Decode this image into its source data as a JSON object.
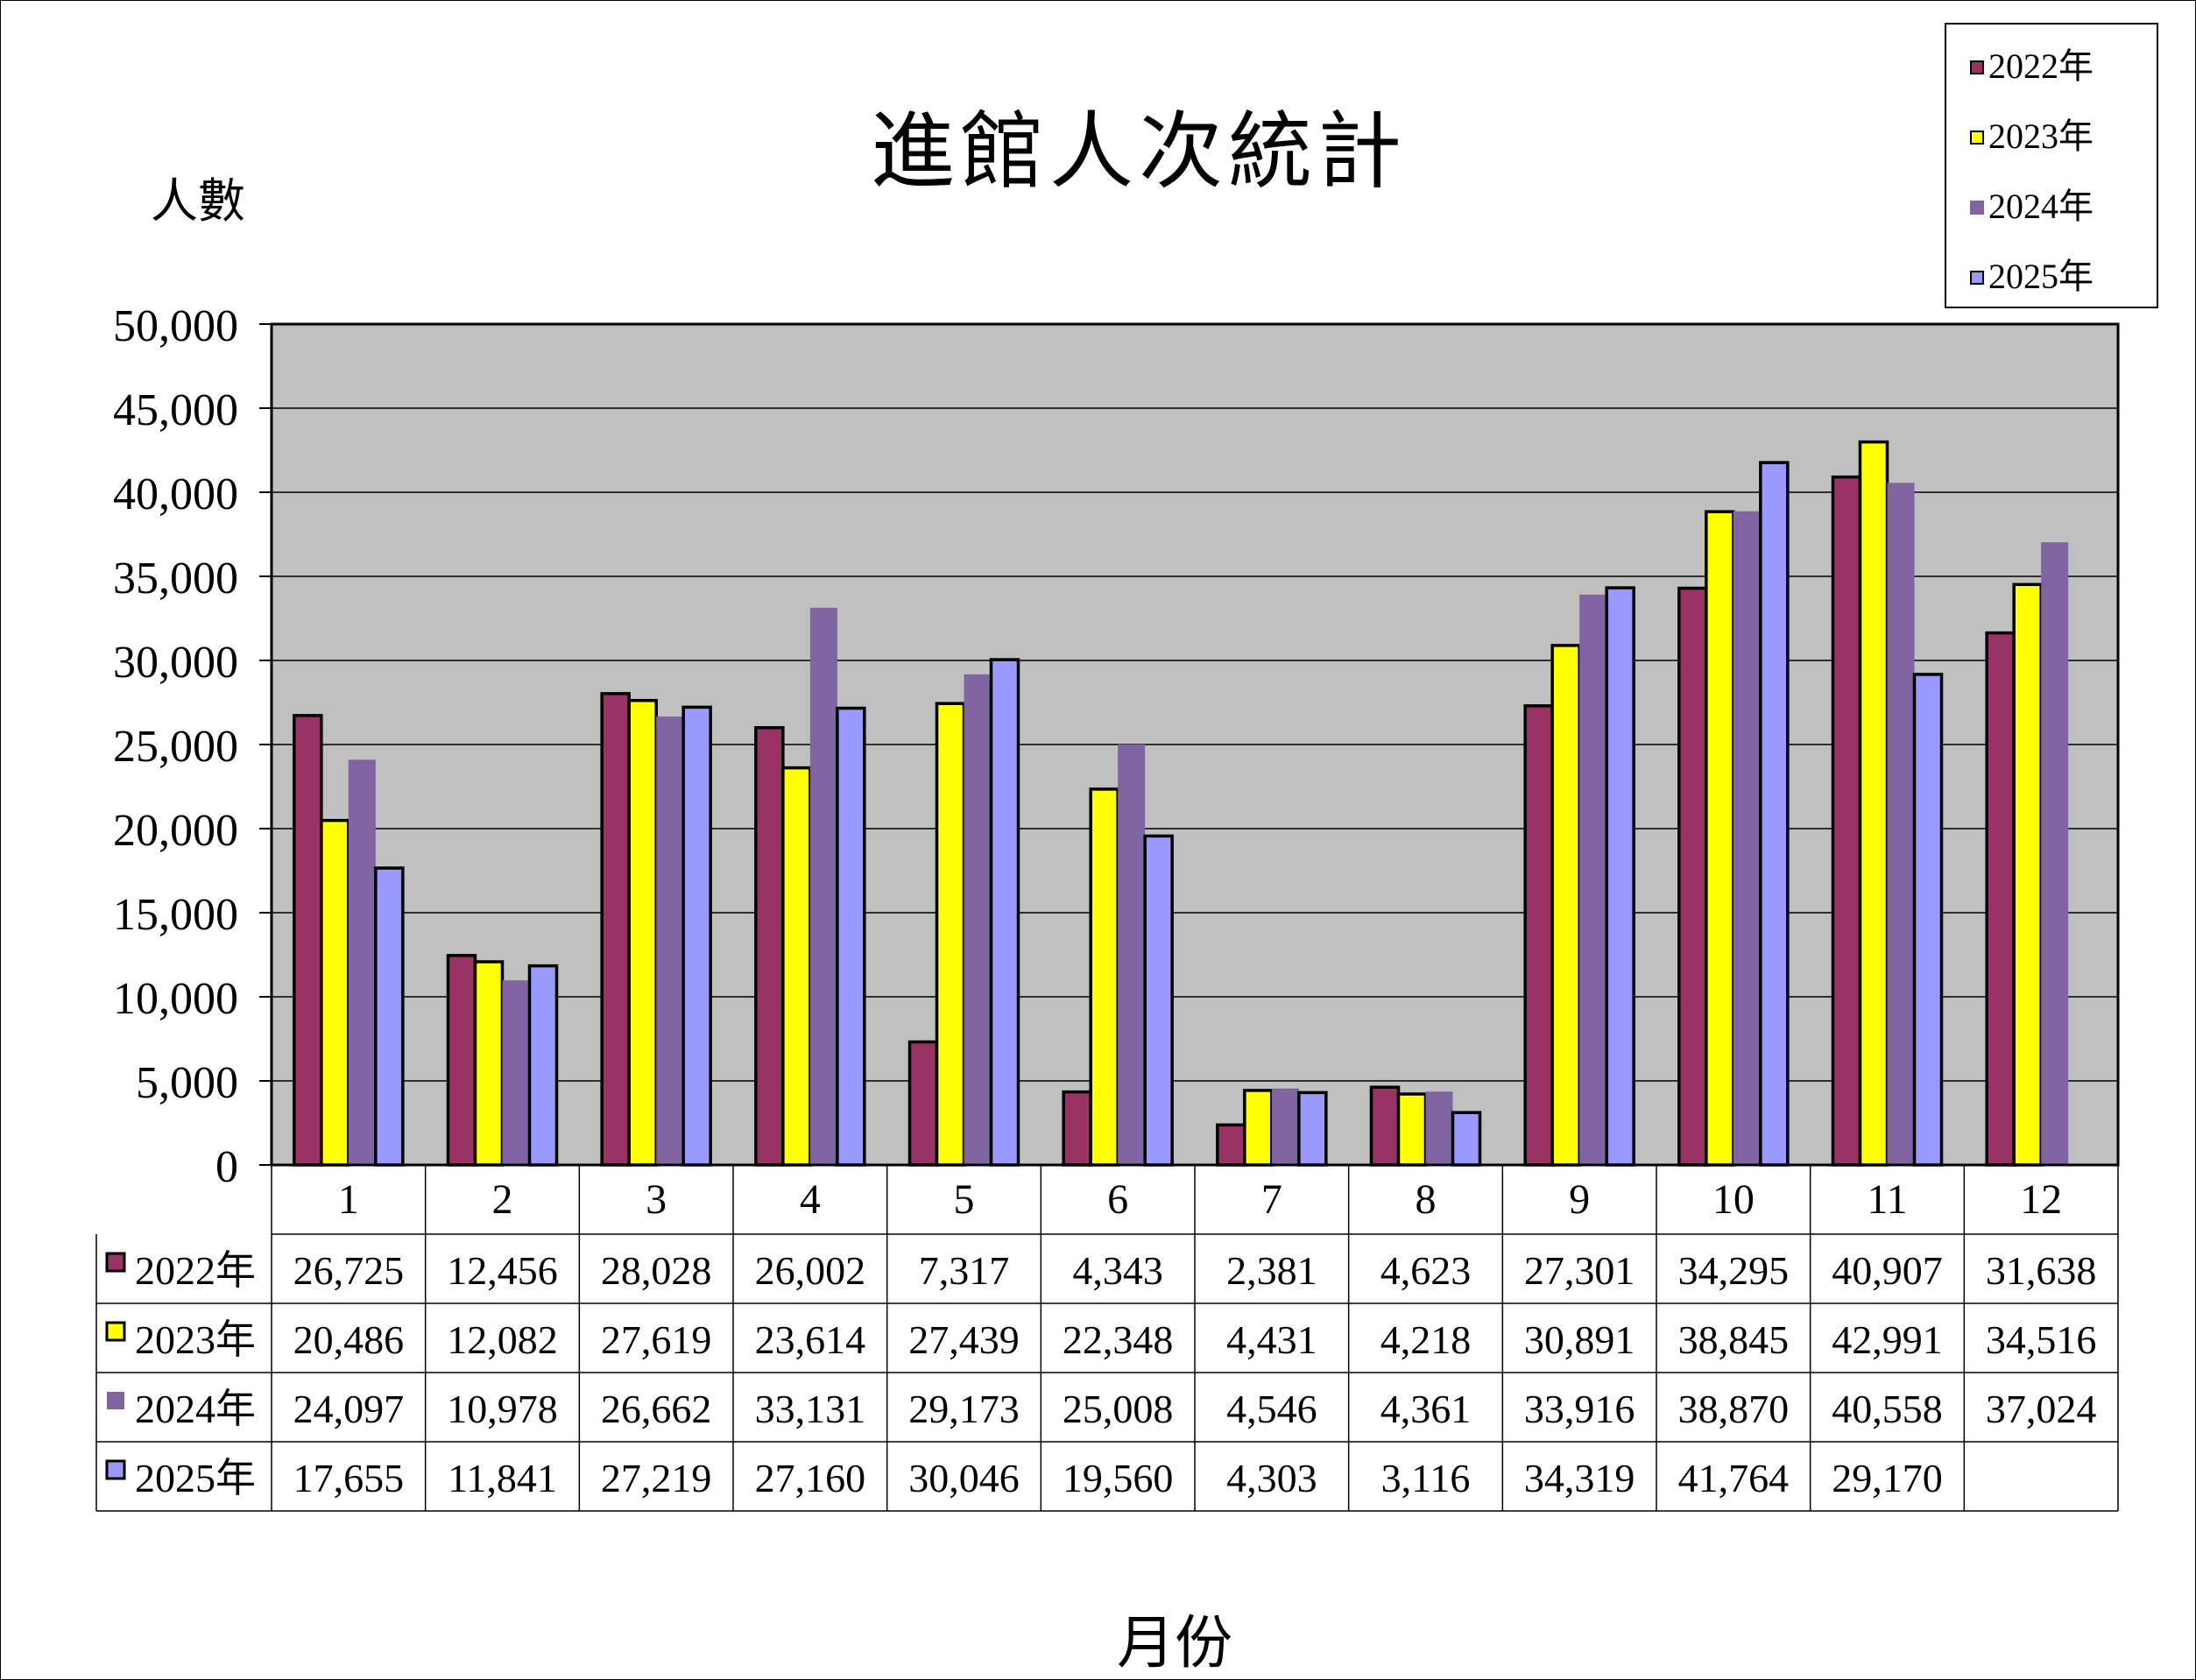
{
  "title": "進館人次統計",
  "y_unit_label": "人數",
  "x_axis_label": "月份",
  "colors": {
    "plot_bg": "#C0C0C0",
    "2022年": "#993366",
    "2023年": "#FFFF00",
    "2024年": "#8064A2",
    "2025年": "#9999FF"
  },
  "legend": [
    {
      "label": "2022年",
      "color": "#993366",
      "outlined": true
    },
    {
      "label": "2023年",
      "color": "#FFFF00",
      "outlined": true
    },
    {
      "label": "2024年",
      "color": "#8064A2",
      "outlined": false
    },
    {
      "label": "2025年",
      "color": "#9999FF",
      "outlined": true
    }
  ],
  "chart_data": {
    "type": "bar",
    "title": "進館人次統計",
    "xlabel": "月份",
    "ylabel": "人數",
    "ylim": [
      0,
      50000
    ],
    "y_ticks": [
      "0",
      "5,000",
      "10,000",
      "15,000",
      "20,000",
      "25,000",
      "30,000",
      "35,000",
      "40,000",
      "45,000",
      "50,000"
    ],
    "grid": true,
    "legend_position": "top-right",
    "categories": [
      "1",
      "2",
      "3",
      "4",
      "5",
      "6",
      "7",
      "8",
      "9",
      "10",
      "11",
      "12"
    ],
    "series": [
      {
        "name": "2022年",
        "values": [
          26725,
          12456,
          28028,
          26002,
          7317,
          4343,
          2381,
          4623,
          27301,
          34295,
          40907,
          31638
        ],
        "labels": [
          "26,725",
          "12,456",
          "28,028",
          "26,002",
          "7,317",
          "4,343",
          "2,381",
          "4,623",
          "27,301",
          "34,295",
          "40,907",
          "31,638"
        ]
      },
      {
        "name": "2023年",
        "values": [
          20486,
          12082,
          27619,
          23614,
          27439,
          22348,
          4431,
          4218,
          30891,
          38845,
          42991,
          34516
        ],
        "labels": [
          "20,486",
          "12,082",
          "27,619",
          "23,614",
          "27,439",
          "22,348",
          "4,431",
          "4,218",
          "30,891",
          "38,845",
          "42,991",
          "34,516"
        ]
      },
      {
        "name": "2024年",
        "values": [
          24097,
          10978,
          26662,
          33131,
          29173,
          25008,
          4546,
          4361,
          33916,
          38870,
          40558,
          37024
        ],
        "labels": [
          "24,097",
          "10,978",
          "26,662",
          "33,131",
          "29,173",
          "25,008",
          "4,546",
          "4,361",
          "33,916",
          "38,870",
          "40,558",
          "37,024"
        ]
      },
      {
        "name": "2025年",
        "values": [
          17655,
          11841,
          27219,
          27160,
          30046,
          19560,
          4303,
          3116,
          34319,
          41764,
          29170,
          null
        ],
        "labels": [
          "17,655",
          "11,841",
          "27,219",
          "27,160",
          "30,046",
          "19,560",
          "4,303",
          "3,116",
          "34,319",
          "41,764",
          "29,170",
          ""
        ]
      }
    ]
  }
}
